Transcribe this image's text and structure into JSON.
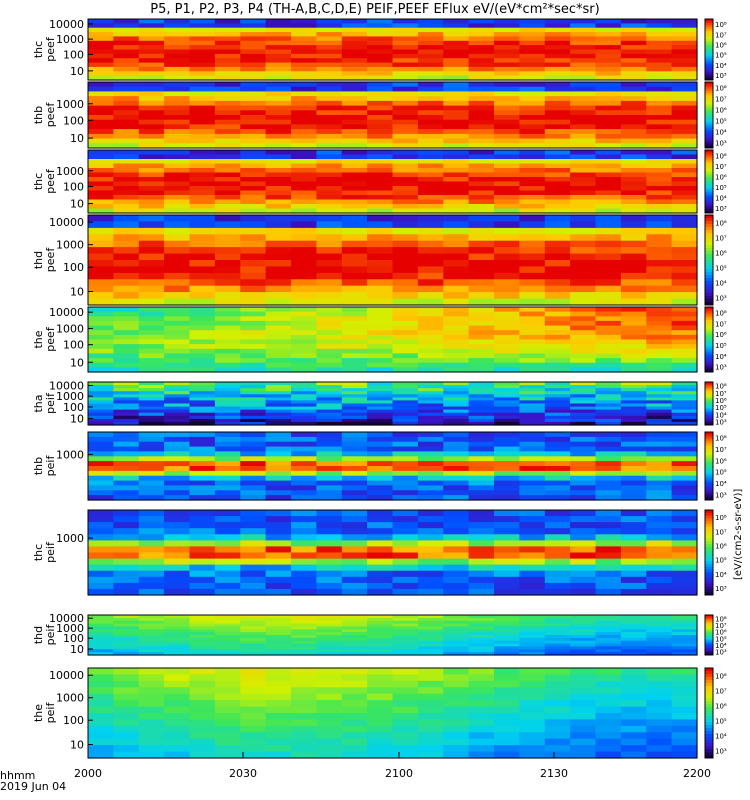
{
  "chart_data": {
    "type": "heatmap",
    "title": "P5, P1, P2, P3, P4 (TH-A,B,C,D,E) PEIF,PEEF EFlux eV/(eV*cm²*sec*sr)",
    "x_ticks": [
      "2000",
      "2030",
      "2100",
      "2130",
      "2200"
    ],
    "x_unit_label": "hhmm",
    "date_label": "2019 Jun 04",
    "colorbar_label": "[eV/(cm2-s-sr-eV)]",
    "colorbar_ticks": [
      "10³",
      "10⁴",
      "10⁵",
      "10⁶",
      "10⁷",
      "10⁸"
    ],
    "panels": [
      {
        "label": [
          "thc",
          "peef"
        ],
        "y_ticks": [
          "10000",
          "1000",
          "100",
          "10"
        ],
        "pattern": "peef-hot"
      },
      {
        "label": [
          "thb",
          "peef"
        ],
        "y_ticks": [
          "1000",
          "100",
          "10"
        ],
        "pattern": "peef-hot"
      },
      {
        "label": [
          "thc",
          "peef"
        ],
        "y_ticks": [
          "1000",
          "100",
          "10"
        ],
        "pattern": "peef-hot"
      },
      {
        "label": [
          "thd",
          "peef"
        ],
        "y_ticks": [
          "10000",
          "1000",
          "100",
          "10"
        ],
        "pattern": "peef-hot"
      },
      {
        "label": [
          "the",
          "peef"
        ],
        "y_ticks": [
          "10000",
          "1000",
          "100",
          "10"
        ],
        "pattern": "peef-rise"
      },
      {
        "label": [
          "tha",
          "peif"
        ],
        "y_ticks": [
          "10000",
          "1000",
          "100",
          "10"
        ],
        "pattern": "peif-cool"
      },
      {
        "label": [
          "thb",
          "peif"
        ],
        "y_ticks": [
          "1000"
        ],
        "pattern": "peif-band"
      },
      {
        "label": [
          "thc",
          "peif"
        ],
        "y_ticks": [
          "1000"
        ],
        "pattern": "peif-band"
      },
      {
        "label": [
          "thd",
          "peif"
        ],
        "y_ticks": [
          "10000",
          "1000",
          "100",
          "10"
        ],
        "pattern": "peif-smooth"
      },
      {
        "label": [
          "the",
          "peif"
        ],
        "y_ticks": [
          "10000",
          "1000",
          "100",
          "10"
        ],
        "pattern": "peif-smooth"
      }
    ]
  }
}
